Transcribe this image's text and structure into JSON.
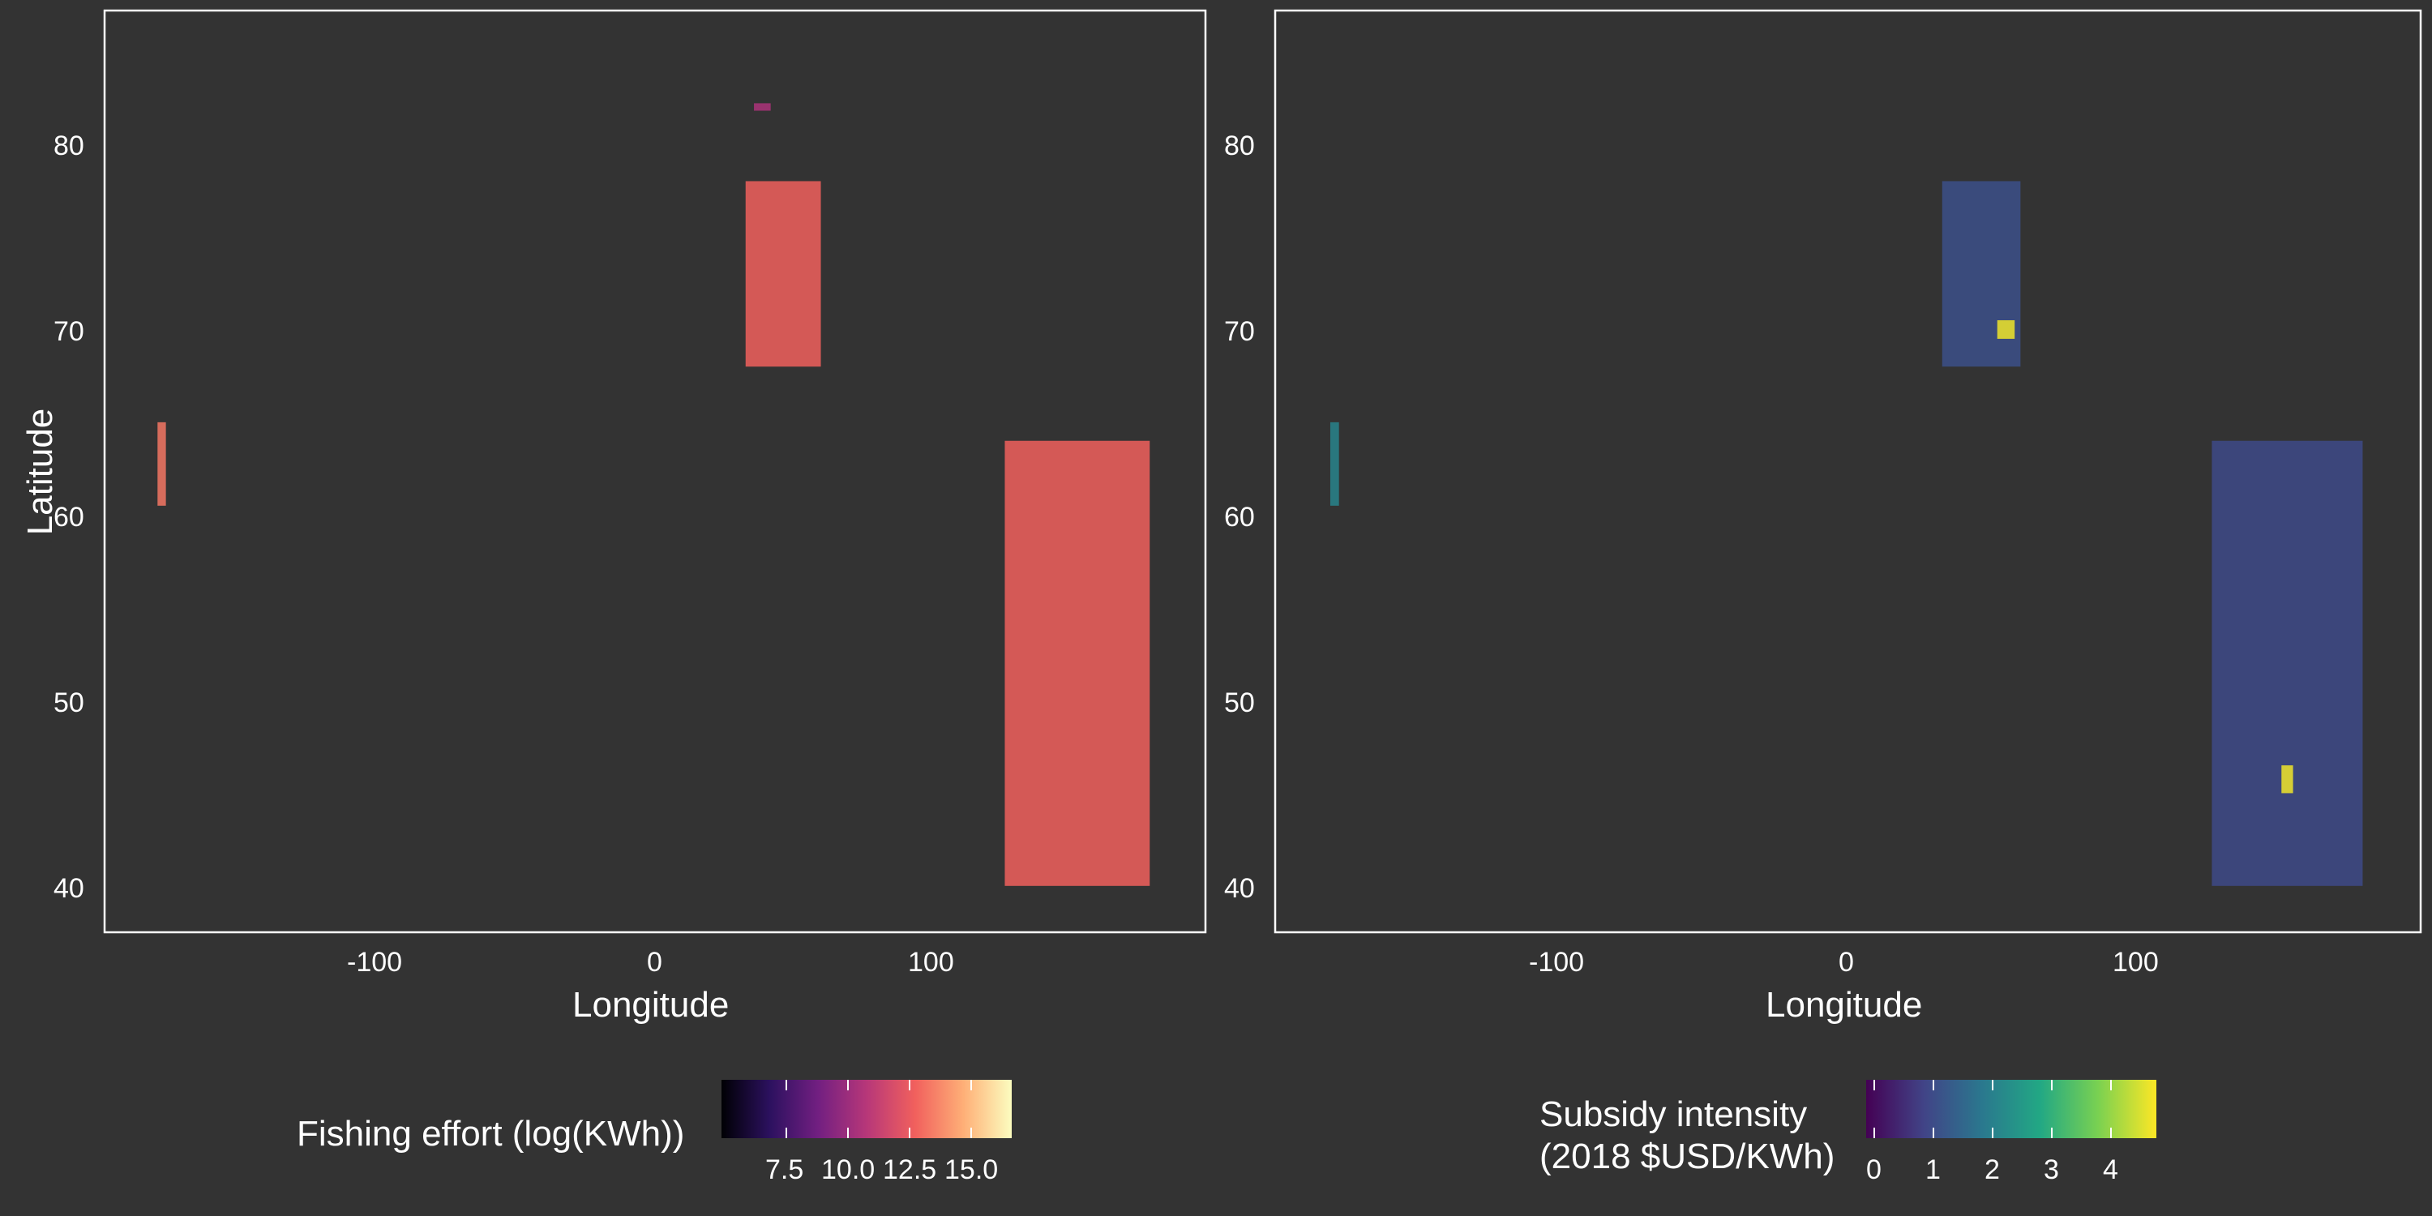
{
  "panels": [
    {
      "id": "effort",
      "xlabel": "Longitude",
      "ylabel": "Latitude",
      "x_ticks": [
        "-100",
        "0",
        "100"
      ],
      "y_ticks": [
        "80",
        "70",
        "60",
        "50",
        "40"
      ],
      "legend": {
        "title": "Fishing effort (log(KWh))",
        "ticks": [
          "7.5",
          "10.0",
          "12.5",
          "15.0"
        ],
        "palette": "inferno-magma",
        "colors": [
          "#000004",
          "#2c115f",
          "#721f81",
          "#b73779",
          "#f1605d",
          "#feaf77",
          "#fcfdbf"
        ]
      }
    },
    {
      "id": "subsidy",
      "xlabel": "Longitude",
      "ylabel": "",
      "x_ticks": [
        "-100",
        "0",
        "100"
      ],
      "y_ticks": [
        "80",
        "70",
        "60",
        "50",
        "40"
      ],
      "legend": {
        "title_line1": "Subsidy intensity",
        "title_line2": "(2018 $USD/KWh)",
        "ticks": [
          "0",
          "1",
          "2",
          "3",
          "4"
        ],
        "palette": "viridis",
        "colors": [
          "#440154",
          "#414487",
          "#2a788e",
          "#22a884",
          "#7ad151",
          "#fde725"
        ]
      }
    }
  ],
  "chart_data": [
    {
      "type": "heatmap",
      "title": "",
      "xlabel": "Longitude",
      "ylabel": "Latitude",
      "xlim": [
        -197,
        198
      ],
      "ylim": [
        37.5,
        87.2
      ],
      "grid": false,
      "legend": "bottom",
      "series": [
        {
          "name": "Fishing effort (log(KWh))",
          "range": [
            6,
            16.5
          ]
        }
      ],
      "regions": [
        {
          "lon": [
            -178,
            -175
          ],
          "lat": [
            60.5,
            65
          ],
          "level": 13.5
        },
        {
          "lon": [
            33,
            60
          ],
          "lat": [
            68,
            78
          ],
          "level": 13
        },
        {
          "lon": [
            126,
            178
          ],
          "lat": [
            40,
            64
          ],
          "level": 13
        },
        {
          "lon": [
            36,
            42
          ],
          "lat": [
            81.8,
            82.2
          ],
          "level": 11
        }
      ]
    },
    {
      "type": "heatmap",
      "title": "",
      "xlabel": "Longitude",
      "ylabel": "",
      "xlim": [
        -197,
        198
      ],
      "ylim": [
        37.5,
        87.2
      ],
      "grid": false,
      "legend": "bottom",
      "series": [
        {
          "name": "Subsidy intensity (2018 $USD/KWh)",
          "range": [
            0,
            4.9
          ]
        }
      ],
      "regions": [
        {
          "lon": [
            -178,
            -175
          ],
          "lat": [
            60.5,
            65
          ],
          "level": 2.2
        },
        {
          "lon": [
            33,
            60
          ],
          "lat": [
            68,
            78
          ],
          "level": 1.2
        },
        {
          "lon": [
            52,
            58
          ],
          "lat": [
            69.5,
            70.5
          ],
          "level": 4.8
        },
        {
          "lon": [
            126,
            178
          ],
          "lat": [
            40,
            64
          ],
          "level": 1.1
        },
        {
          "lon": [
            150,
            154
          ],
          "lat": [
            45,
            46.5
          ],
          "level": 4.8
        }
      ]
    }
  ]
}
